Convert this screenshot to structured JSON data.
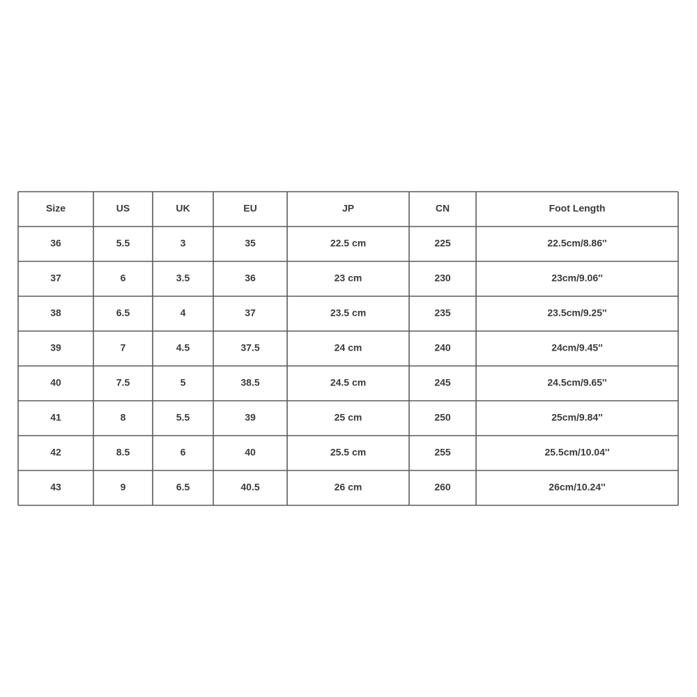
{
  "table": {
    "header": [
      "Size",
      "US",
      "UK",
      "EU",
      "JP",
      "CN",
      "Foot Length"
    ],
    "rows": [
      [
        "36",
        "5.5",
        "3",
        "35",
        "22.5 cm",
        "225",
        "22.5cm/8.86''"
      ],
      [
        "37",
        "6",
        "3.5",
        "36",
        "23 cm",
        "230",
        "23cm/9.06''"
      ],
      [
        "38",
        "6.5",
        "4",
        "37",
        "23.5 cm",
        "235",
        "23.5cm/9.25''"
      ],
      [
        "39",
        "7",
        "4.5",
        "37.5",
        "24 cm",
        "240",
        "24cm/9.45''"
      ],
      [
        "40",
        "7.5",
        "5",
        "38.5",
        "24.5 cm",
        "245",
        "24.5cm/9.65''"
      ],
      [
        "41",
        "8",
        "5.5",
        "39",
        "25 cm",
        "250",
        "25cm/9.84''"
      ],
      [
        "42",
        "8.5",
        "6",
        "40",
        "25.5 cm",
        "255",
        "25.5cm/10.04''"
      ],
      [
        "43",
        "9",
        "6.5",
        "40.5",
        "26 cm",
        "260",
        "26cm/10.24''"
      ]
    ]
  }
}
